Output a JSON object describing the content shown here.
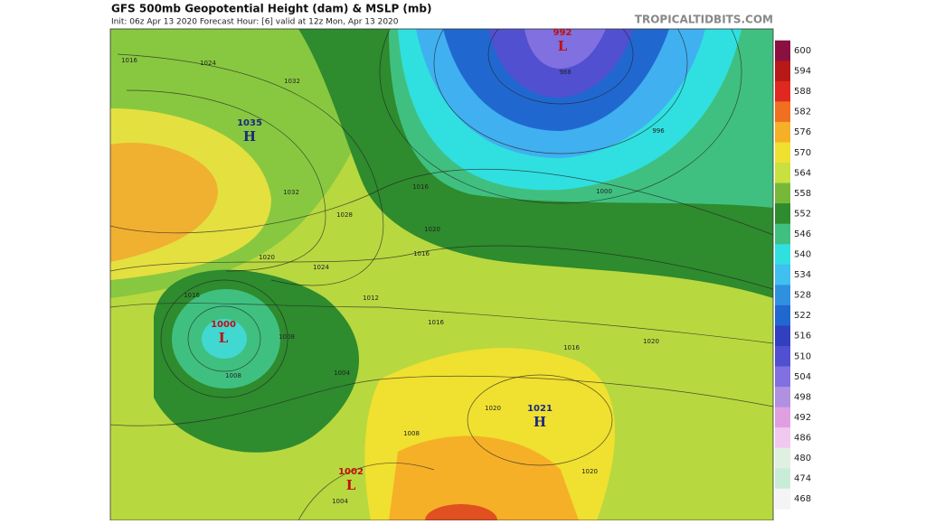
{
  "header": {
    "title": "GFS 500mb Geopotential Height (dam) & MSLP (mb)",
    "subtitle": "Init: 06z Apr 13 2020   Forecast Hour: [6]   valid at 12z Mon, Apr 13 2020",
    "site": "TROPICALTIDBITS.COM"
  },
  "colorbar": {
    "ticks": [
      600,
      594,
      588,
      582,
      576,
      570,
      564,
      558,
      552,
      546,
      540,
      534,
      528,
      522,
      516,
      510,
      504,
      498,
      492,
      486,
      480,
      474,
      468
    ],
    "colors": [
      "#8a1040",
      "#b81818",
      "#e02820",
      "#f07020",
      "#f5b028",
      "#f0e030",
      "#c8e040",
      "#78b838",
      "#2e8b2e",
      "#40c080",
      "#30e0e0",
      "#40c0f0",
      "#3090e0",
      "#2068d0",
      "#3040c0",
      "#5050d0",
      "#8070e0",
      "#b090e0",
      "#e0a0e0",
      "#f0c8f0",
      "#e0f0e0",
      "#c8ecd8",
      "#f4f4f4"
    ]
  },
  "pressure_centers": [
    {
      "value": "1035",
      "symbol": "H",
      "color": "#1a2a80"
    },
    {
      "value": "992",
      "symbol": "L",
      "color": "#c01010"
    },
    {
      "value": "1000",
      "symbol": "L",
      "color": "#c01010"
    },
    {
      "value": "1021",
      "symbol": "H",
      "color": "#1a2a80"
    },
    {
      "value": "1002",
      "symbol": "L",
      "color": "#c01010"
    }
  ],
  "isobar_labels": [
    "1016",
    "1024",
    "1032",
    "1032",
    "1028",
    "1024",
    "1020",
    "1016",
    "1016",
    "1012",
    "1008",
    "1008",
    "1016",
    "1020",
    "1016",
    "1020",
    "1004",
    "1000",
    "996",
    "988",
    "1020",
    "1016",
    "1008",
    "1004",
    "1020"
  ]
}
